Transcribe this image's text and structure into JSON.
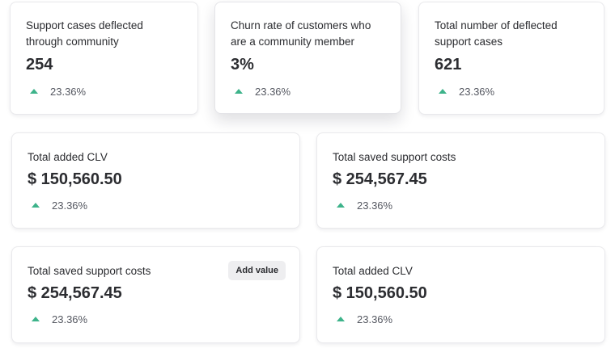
{
  "cards": [
    {
      "label_line1": "Support cases deflected",
      "label_line2": "through community",
      "value": "254",
      "trend": "23.36%"
    },
    {
      "label_line1": "Churn rate of customers who",
      "label_line2": "are a community member",
      "value": "3%",
      "trend": "23.36%"
    },
    {
      "label_line1": "Total number of deflected",
      "label_line2": "support cases",
      "value": "621",
      "trend": "23.36%"
    },
    {
      "label": "Total added CLV",
      "value": "$ 150,560.50",
      "trend": "23.36%"
    },
    {
      "label": "Total saved support costs",
      "value": "$ 254,567.45",
      "trend": "23.36%"
    },
    {
      "label": "Total saved support costs",
      "value": "$ 254,567.45",
      "trend": "23.36%",
      "button": "Add value"
    },
    {
      "label": "Total added CLV",
      "value": "$ 150,560.50",
      "trend": "23.36%"
    }
  ],
  "colors": {
    "trend_up": "#3db38a",
    "card_border": "#e9e9ec",
    "button_bg": "#eeeef0"
  },
  "icons": {
    "trend": "trend-up-icon"
  }
}
